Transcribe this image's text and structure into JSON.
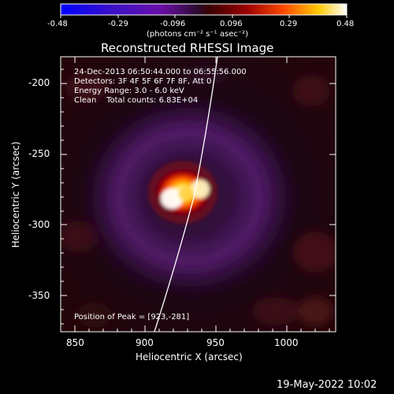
{
  "colorbar": {
    "ticks": [
      "-0.48",
      "-0.29",
      "-0.096",
      "0.096",
      "0.29",
      "0.48"
    ],
    "unit_label": "(photons cm⁻² s⁻¹ asec⁻²)",
    "min": -0.48,
    "max": 0.48
  },
  "title": "Reconstructed RHESSI Image",
  "annotations": {
    "line1": "24-Dec-2013 06:50:44.000 to 06:55:56.000",
    "line2": "Detectors: 3F 4F 5F 6F 7F 8F, Att 0",
    "line3": "Energy Range: 3.0 - 6.0 keV",
    "line4": "Clean    Total counts: 6.83E+04",
    "peak": "Position of Peak = [923,-281]"
  },
  "axes": {
    "xlabel": "Heliocentric X (arcsec)",
    "ylabel": "Heliocentric Y (arcsec)",
    "xticks": [
      "850",
      "900",
      "950",
      "1000"
    ],
    "yticks": [
      "-200",
      "-250",
      "-300",
      "-350"
    ],
    "xrange": [
      840,
      1035
    ],
    "yrange": [
      -375,
      -180
    ]
  },
  "source": {
    "peak_x": 923,
    "peak_y": -281
  },
  "footer": {
    "date": "19-May-2022 10:02"
  },
  "colors": {
    "background": "#000000",
    "text": "#ffffff",
    "limb": "#ffffff",
    "halo": "#5a1e73"
  }
}
